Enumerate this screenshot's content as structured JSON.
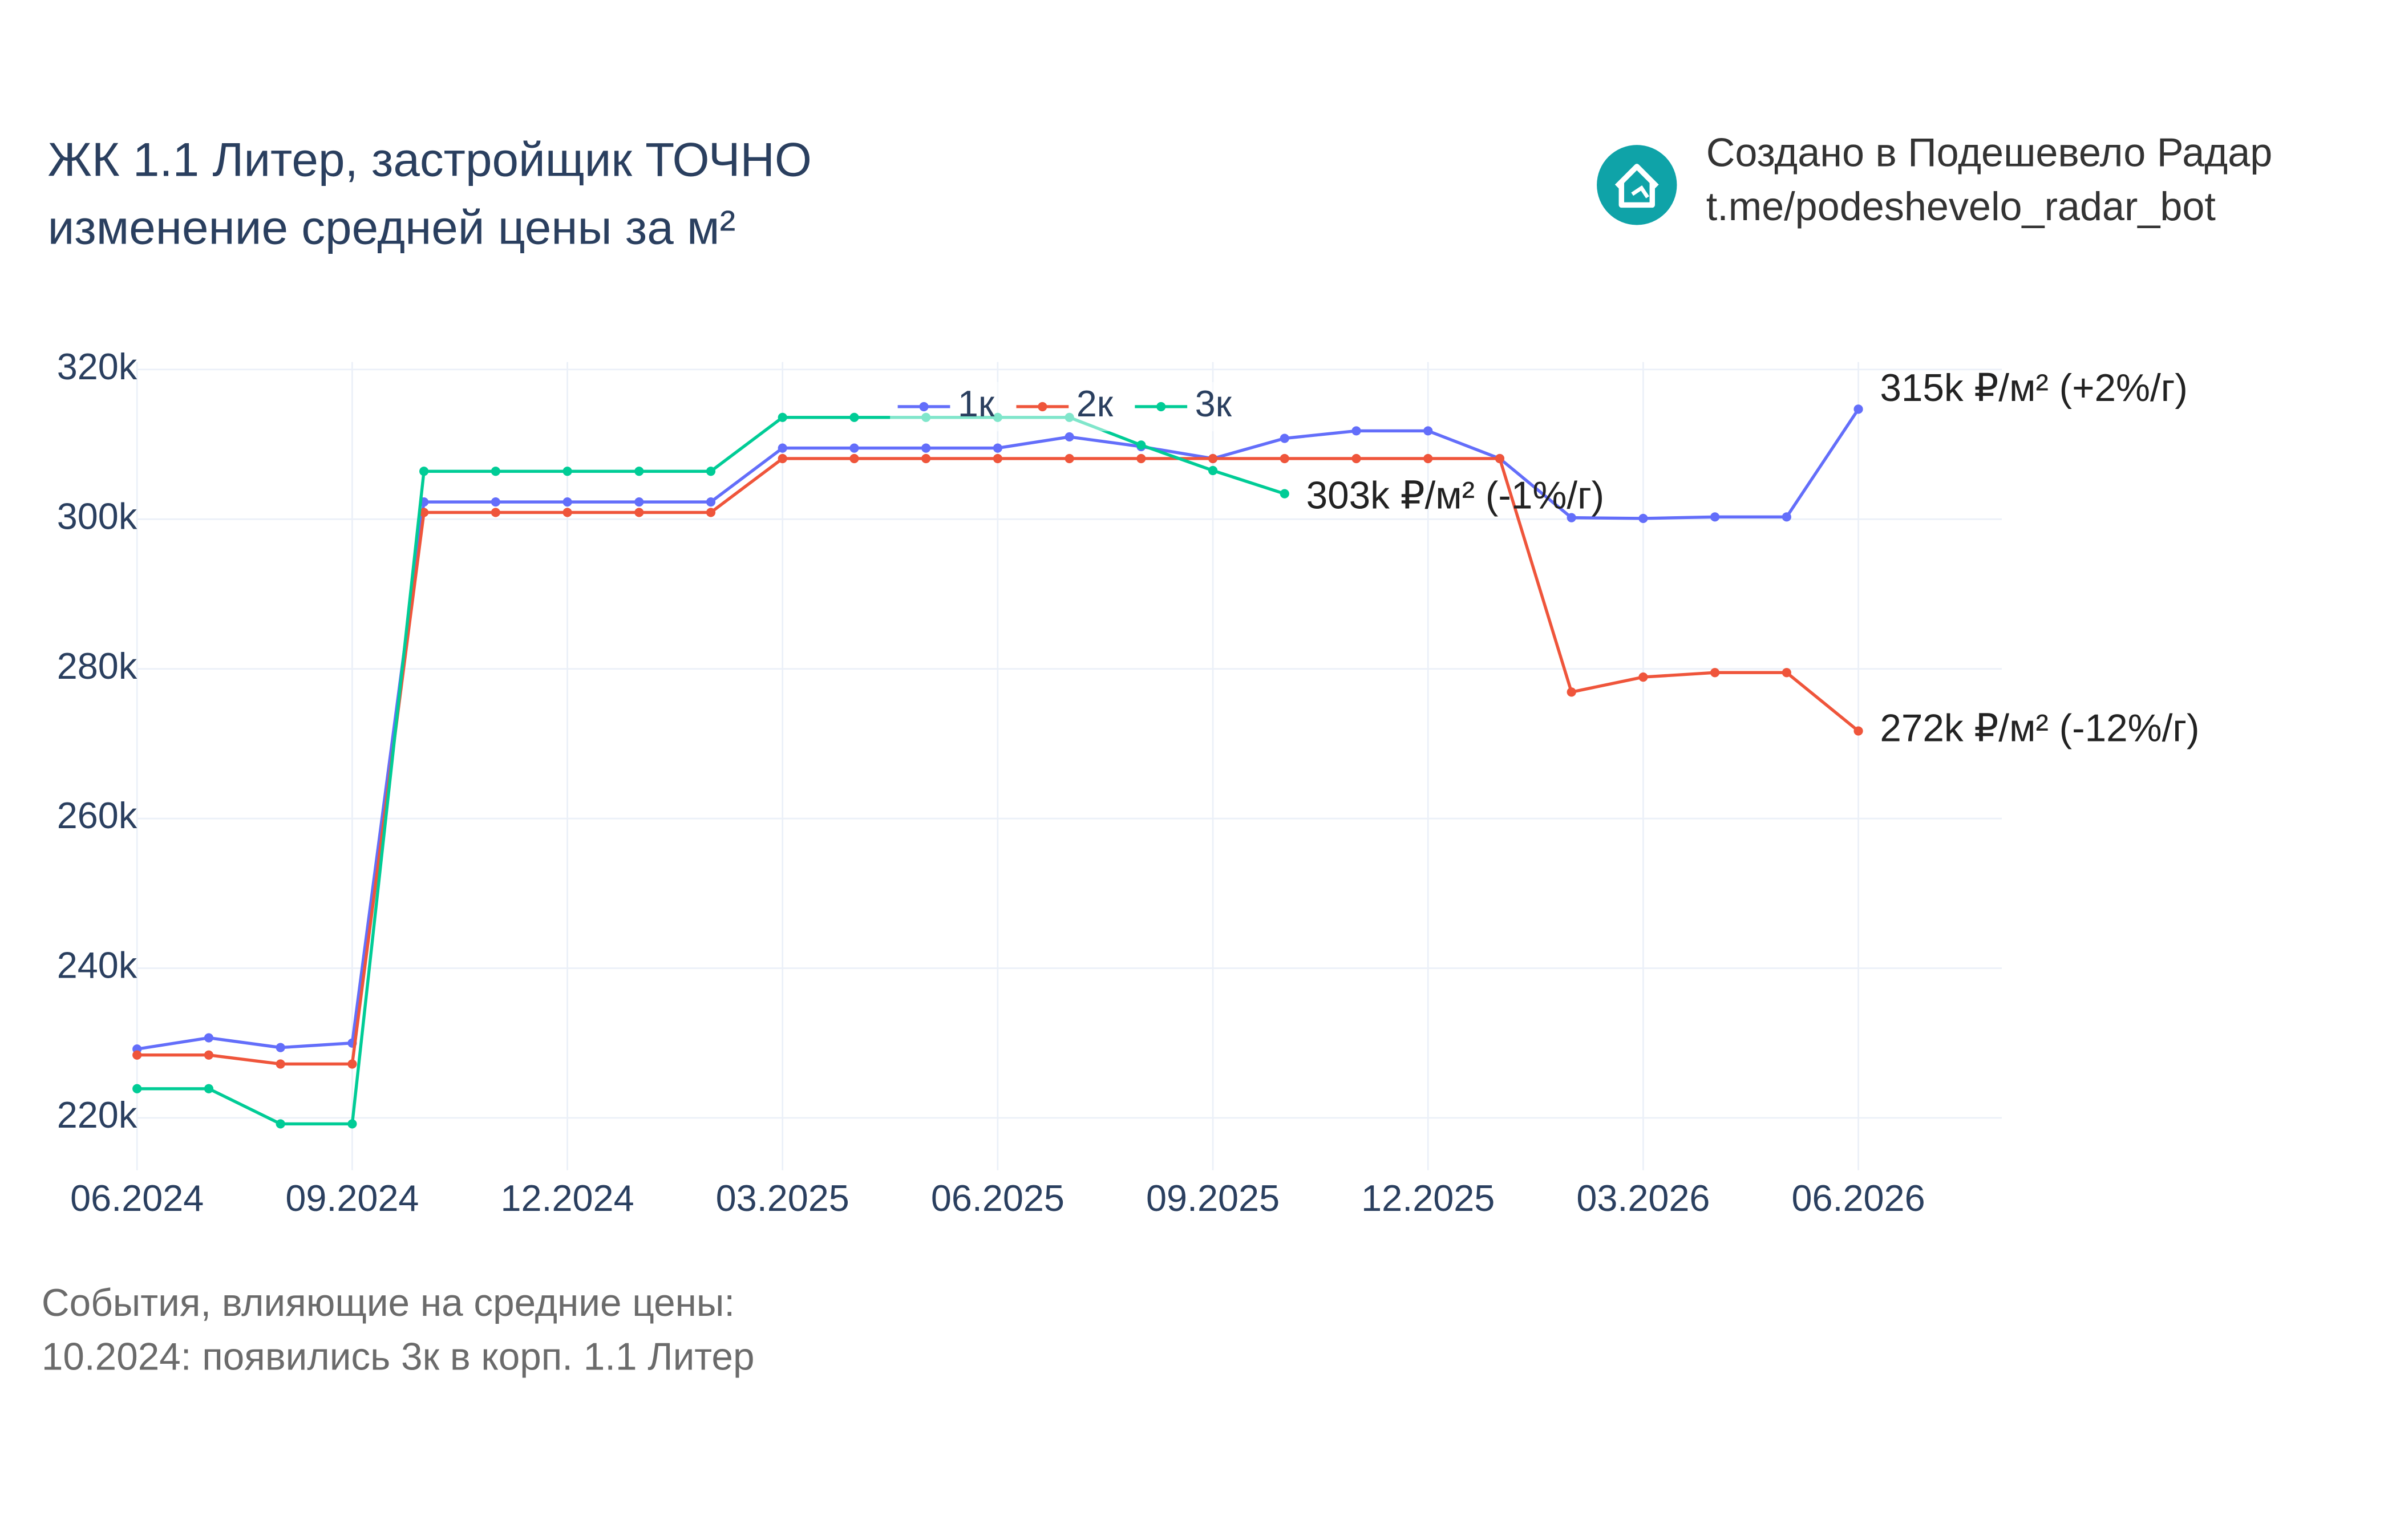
{
  "chart_data": {
    "type": "line",
    "title": "ЖК 1.1 Литер, застройщик ТОЧНО",
    "subtitle": "изменение средней цены за м²",
    "credit": [
      "Создано в Подешевело Радар",
      "t.me/podeshevelo_radar_bot"
    ],
    "footer": [
      "События, влияющие на средние цены:",
      "10.2024: появились 3к в корп. 1.1 Литер"
    ],
    "x": [
      "06.2024",
      "07.2024",
      "08.2024",
      "09.2024",
      "10.2024",
      "11.2024",
      "12.2024",
      "01.2025",
      "02.2025",
      "03.2025",
      "04.2025",
      "05.2025",
      "06.2025",
      "07.2025",
      "08.2025",
      "09.2025",
      "10.2025",
      "11.2025",
      "12.2025",
      "01.2026",
      "02.2026",
      "03.2026",
      "04.2026",
      "05.2026",
      "06.2026"
    ],
    "xlim": [
      "06.2024",
      "08.2026"
    ],
    "xticks": [
      "06.2024",
      "09.2024",
      "12.2024",
      "03.2025",
      "06.2025",
      "09.2025",
      "12.2025",
      "03.2026",
      "06.2026"
    ],
    "ylim": [
      213000,
      321000
    ],
    "yticks": [
      {
        "value": 220000,
        "label": "220k"
      },
      {
        "value": 240000,
        "label": "240k"
      },
      {
        "value": 260000,
        "label": "260k"
      },
      {
        "value": 280000,
        "label": "280k"
      },
      {
        "value": 300000,
        "label": "300k"
      },
      {
        "value": 320000,
        "label": "320k"
      }
    ],
    "grid": true,
    "legend": "top",
    "series": [
      {
        "name": "1к",
        "color": "#636efa",
        "values": [
          229200,
          230700,
          229400,
          230000,
          302300,
          302300,
          302300,
          302300,
          302300,
          309500,
          309500,
          309500,
          309500,
          311000,
          309700,
          308100,
          310800,
          311800,
          311800,
          308100,
          300200,
          300100,
          300300,
          300300,
          314700
        ],
        "value_labels": [
          null,
          null,
          null,
          null,
          null,
          null,
          null,
          null,
          null,
          null,
          null,
          null,
          null,
          null,
          null,
          null,
          null,
          null,
          null,
          null,
          null,
          null,
          null,
          null,
          "315k ₽/м² (+2%/г)"
        ]
      },
      {
        "name": "2к",
        "color": "#ef553b",
        "values": [
          228400,
          228400,
          227200,
          227200,
          300900,
          300900,
          300900,
          300900,
          300900,
          308100,
          308100,
          308100,
          308100,
          308100,
          308100,
          308100,
          308100,
          308100,
          308100,
          308100,
          276900,
          278900,
          279500,
          279500,
          271700
        ],
        "value_labels": [
          null,
          null,
          null,
          null,
          null,
          null,
          null,
          null,
          null,
          null,
          null,
          null,
          null,
          null,
          null,
          null,
          null,
          null,
          null,
          null,
          null,
          null,
          null,
          null,
          "272k ₽/м² (-12%/г)"
        ]
      },
      {
        "name": "3к",
        "color": "#00cc96",
        "values": [
          223900,
          223900,
          219200,
          219200,
          306400,
          306400,
          306400,
          306400,
          306400,
          313600,
          313600,
          313600,
          313600,
          313600,
          309900,
          306500,
          303400,
          null,
          null,
          null,
          null,
          null,
          null,
          null,
          null
        ],
        "value_labels": [
          null,
          null,
          null,
          null,
          null,
          null,
          null,
          null,
          null,
          null,
          null,
          null,
          null,
          null,
          null,
          null,
          "303k ₽/м² (-1%/г)",
          null,
          null,
          null,
          null,
          null,
          null,
          null,
          null
        ]
      }
    ]
  }
}
